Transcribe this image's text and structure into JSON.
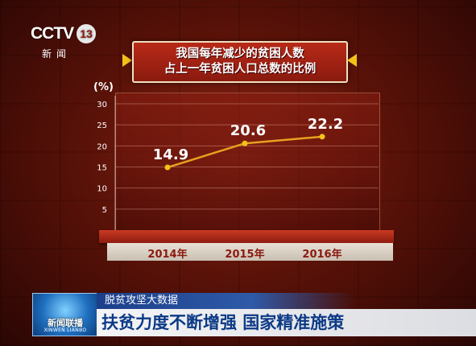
{
  "logo": {
    "brand": "CCTV",
    "channel": "13",
    "subtitle": "新闻"
  },
  "title": {
    "line1": "我国每年减少的贫困人数",
    "line2": "占上一年贫困人口总数的比例"
  },
  "ticker": {
    "logo_name": "新闻联播",
    "logo_roman": "XINWEN LIANBO",
    "subheading": "脱贫攻坚大数据",
    "headline": "扶贫力度不断增强 国家精准施策"
  },
  "colors": {
    "line": "#e8a020",
    "point": "#f2c21a",
    "label": "#ffffff",
    "arrow": "#f2c21a"
  },
  "chart_data": {
    "type": "line",
    "title": "我国每年减少的贫困人数占上一年贫困人口总数的比例",
    "ylabel": "(%)",
    "ylim": [
      0,
      30
    ],
    "yticks": [
      5,
      10,
      15,
      20,
      25,
      30
    ],
    "categories": [
      "2014年",
      "2015年",
      "2016年"
    ],
    "series": [
      {
        "values": [
          14.9,
          20.6,
          22.2
        ],
        "labels": [
          "14.9",
          "20.6",
          "22.2"
        ]
      }
    ],
    "grid": true
  }
}
